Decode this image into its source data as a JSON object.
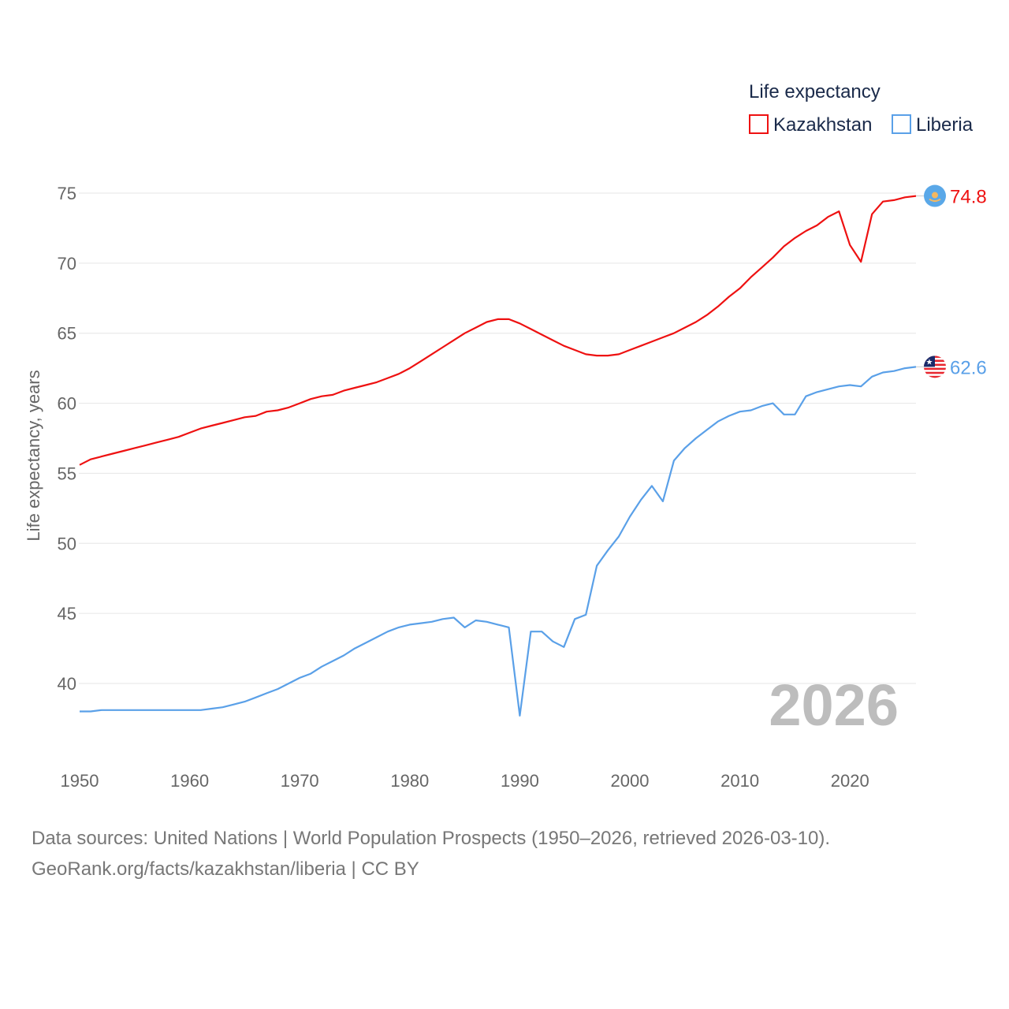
{
  "chart_data": {
    "type": "line",
    "legend_title": "Life expectancy",
    "ylabel": "Life expectancy, years",
    "xlabel": "",
    "ylim": [
      35,
      76
    ],
    "xlim": [
      1950,
      2026
    ],
    "y_ticks": [
      40,
      45,
      50,
      55,
      60,
      65,
      70,
      75
    ],
    "x_ticks": [
      1950,
      1960,
      1970,
      1980,
      1990,
      2000,
      2010,
      2020
    ],
    "grid": true,
    "legend_position": "top-right",
    "year_watermark": "2026",
    "x": [
      1950,
      1951,
      1952,
      1953,
      1954,
      1955,
      1956,
      1957,
      1958,
      1959,
      1960,
      1961,
      1962,
      1963,
      1964,
      1965,
      1966,
      1967,
      1968,
      1969,
      1970,
      1971,
      1972,
      1973,
      1974,
      1975,
      1976,
      1977,
      1978,
      1979,
      1980,
      1981,
      1982,
      1983,
      1984,
      1985,
      1986,
      1987,
      1988,
      1989,
      1990,
      1991,
      1992,
      1993,
      1994,
      1995,
      1996,
      1997,
      1998,
      1999,
      2000,
      2001,
      2002,
      2003,
      2004,
      2005,
      2006,
      2007,
      2008,
      2009,
      2010,
      2011,
      2012,
      2013,
      2014,
      2015,
      2016,
      2017,
      2018,
      2019,
      2020,
      2021,
      2022,
      2023,
      2024,
      2025,
      2026
    ],
    "series": [
      {
        "name": "Kazakhstan",
        "color": "#ee1111",
        "end_label": "74.8",
        "values": [
          55.6,
          56.0,
          56.2,
          56.4,
          56.6,
          56.8,
          57.0,
          57.2,
          57.4,
          57.6,
          57.9,
          58.2,
          58.4,
          58.6,
          58.8,
          59.0,
          59.1,
          59.4,
          59.5,
          59.7,
          60.0,
          60.3,
          60.5,
          60.6,
          60.9,
          61.1,
          61.3,
          61.5,
          61.8,
          62.1,
          62.5,
          63.0,
          63.5,
          64.0,
          64.5,
          65.0,
          65.4,
          65.8,
          66.0,
          66.0,
          65.7,
          65.3,
          64.9,
          64.5,
          64.1,
          63.8,
          63.5,
          63.4,
          63.4,
          63.5,
          63.8,
          64.1,
          64.4,
          64.7,
          65.0,
          65.4,
          65.8,
          66.3,
          66.9,
          67.6,
          68.2,
          69.0,
          69.7,
          70.4,
          71.2,
          71.8,
          72.3,
          72.7,
          73.3,
          73.7,
          71.3,
          70.1,
          73.5,
          74.4,
          74.5,
          74.7,
          74.8
        ]
      },
      {
        "name": "Liberia",
        "color": "#5aa0e8",
        "end_label": "62.6",
        "values": [
          38.0,
          38.0,
          38.1,
          38.1,
          38.1,
          38.1,
          38.1,
          38.1,
          38.1,
          38.1,
          38.1,
          38.1,
          38.2,
          38.3,
          38.5,
          38.7,
          39.0,
          39.3,
          39.6,
          40.0,
          40.4,
          40.7,
          41.2,
          41.6,
          42.0,
          42.5,
          42.9,
          43.3,
          43.7,
          44.0,
          44.2,
          44.3,
          44.4,
          44.6,
          44.7,
          44.0,
          44.5,
          44.4,
          44.2,
          44.0,
          37.7,
          43.7,
          43.7,
          43.0,
          42.6,
          44.6,
          44.9,
          48.4,
          49.5,
          50.5,
          51.9,
          53.1,
          54.1,
          53.0,
          55.9,
          56.8,
          57.5,
          58.1,
          58.7,
          59.1,
          59.4,
          59.5,
          59.8,
          60.0,
          59.2,
          59.2,
          60.5,
          60.8,
          61.0,
          61.2,
          61.3,
          61.2,
          61.9,
          62.2,
          62.3,
          62.5,
          62.6
        ]
      }
    ]
  },
  "footer": {
    "line1": "Data sources: United Nations | World Population Prospects (1950–2026, retrieved 2026-03-10).",
    "line2": "GeoRank.org/facts/kazakhstan/liberia | CC BY"
  }
}
